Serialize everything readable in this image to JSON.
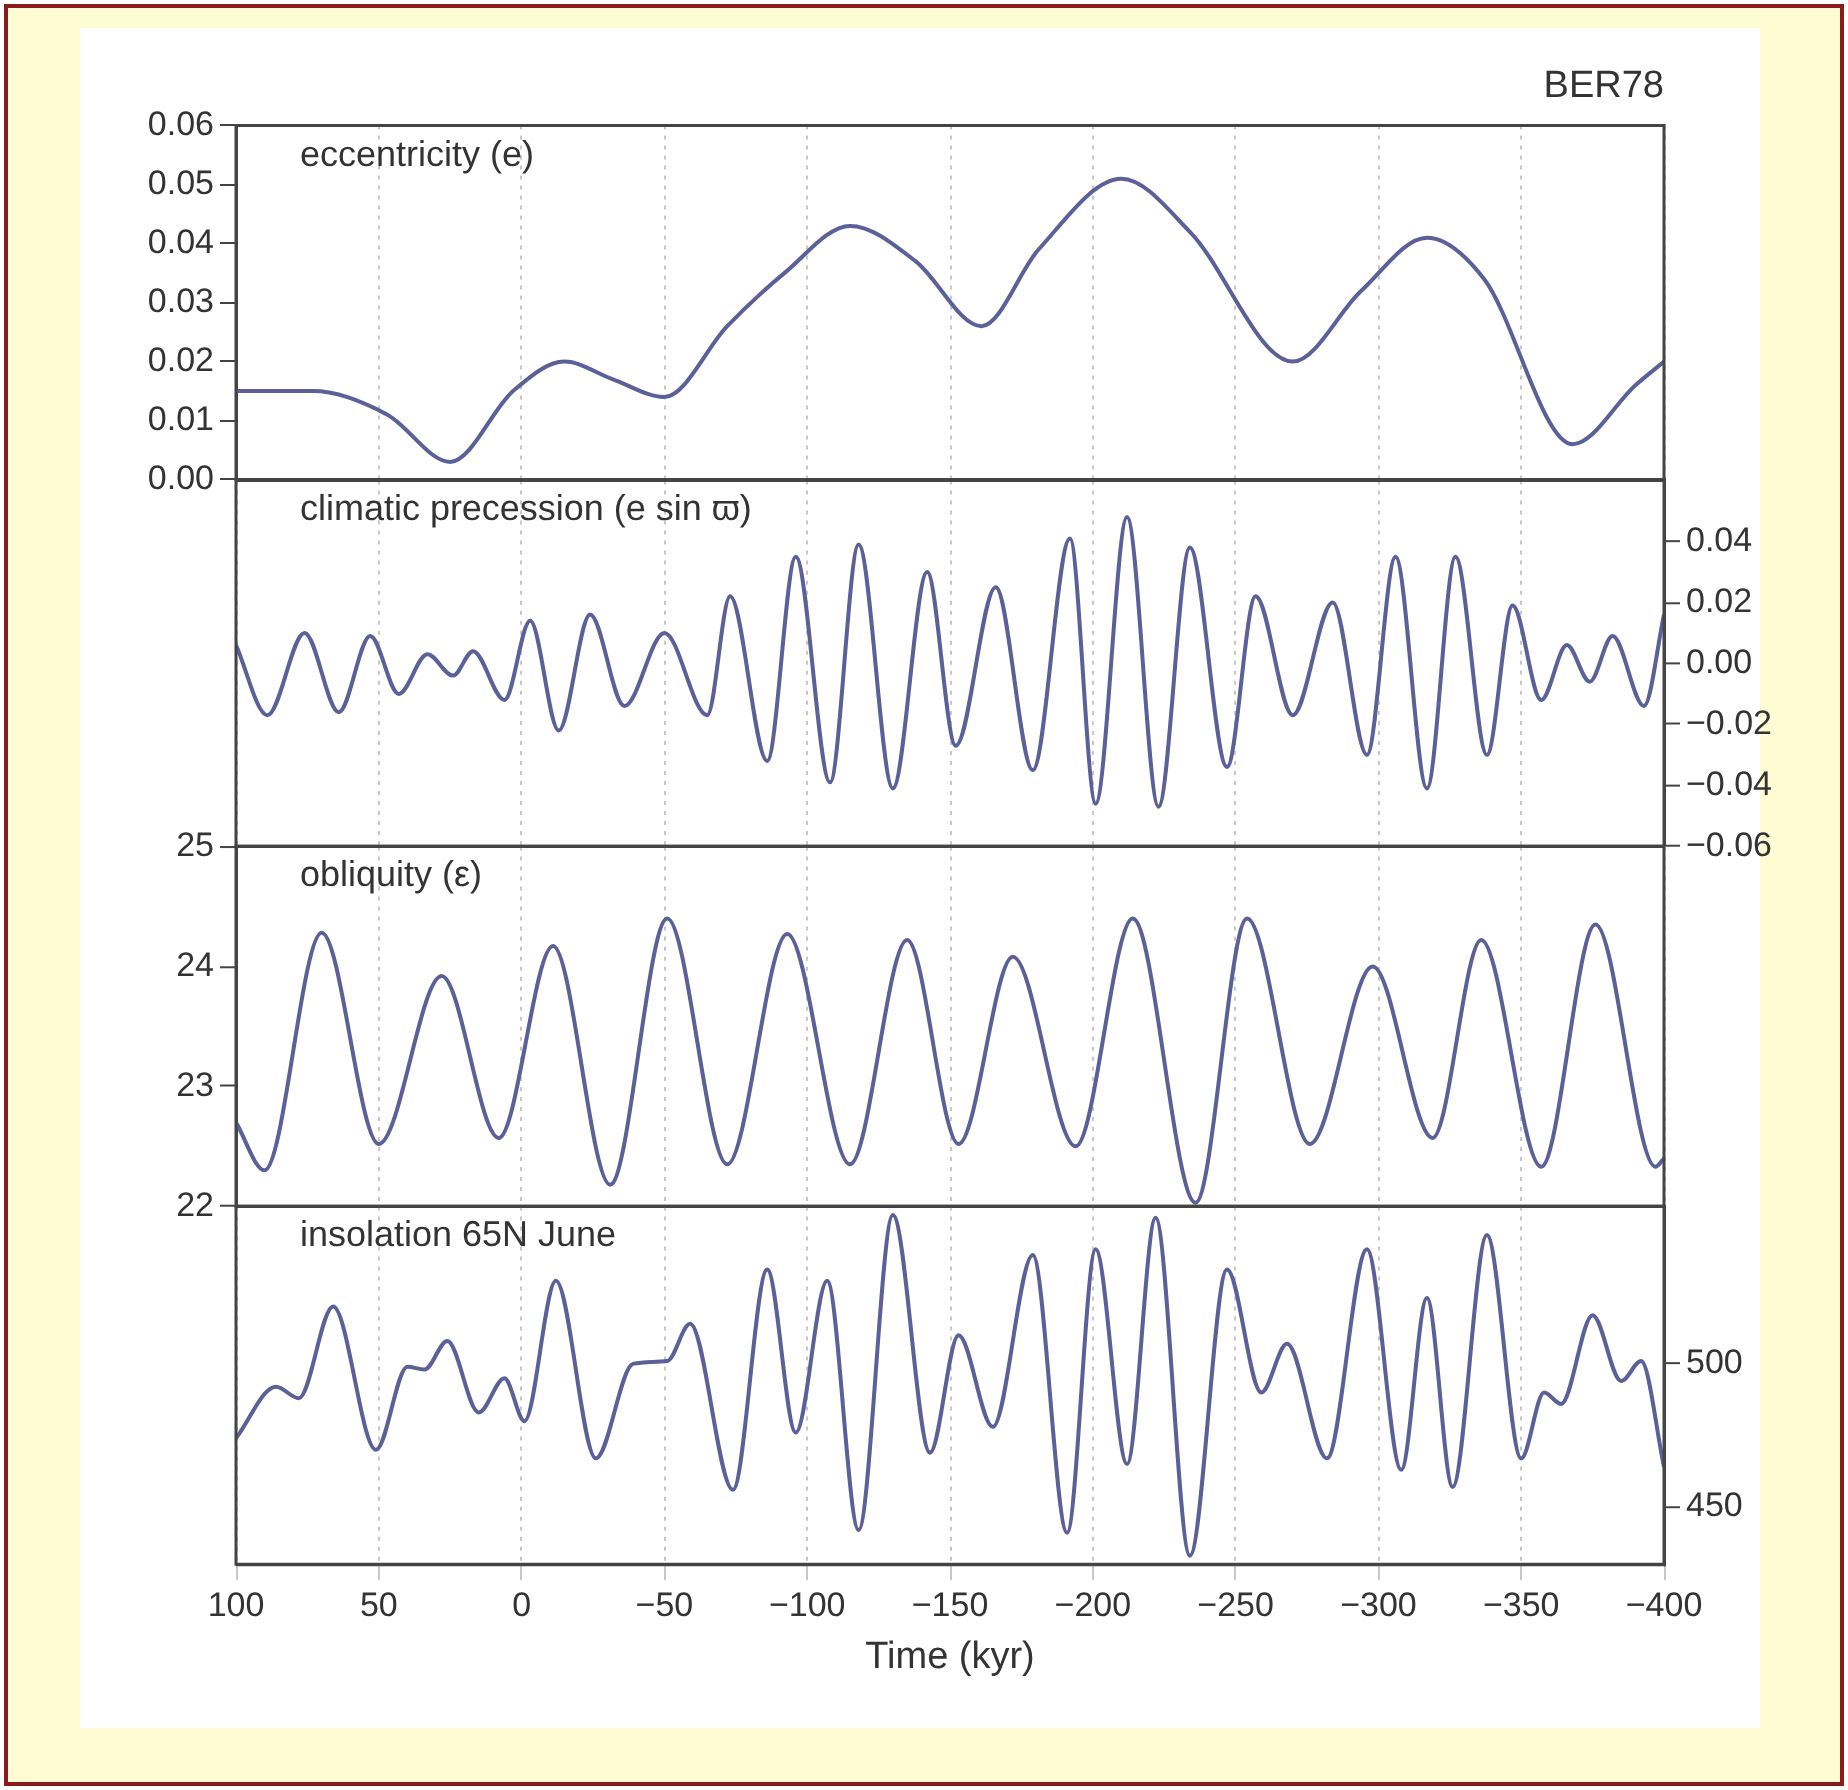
{
  "chart_data": [
    {
      "type": "line",
      "title": "BER78",
      "annotations": [
        "eccentricity (e)"
      ],
      "xlim": [
        100,
        -400
      ],
      "xticks": [
        {
          "value": 100,
          "label": null
        },
        {
          "value": 50,
          "label": null
        },
        {
          "value": 0,
          "label": null
        },
        {
          "value": -50,
          "label": null
        },
        {
          "value": -100,
          "label": null
        },
        {
          "value": -150,
          "label": null
        },
        {
          "value": -200,
          "label": null
        },
        {
          "value": -250,
          "label": null
        },
        {
          "value": -300,
          "label": null
        },
        {
          "value": -350,
          "label": null
        },
        {
          "value": -400,
          "label": null
        }
      ],
      "ylim": [
        0,
        0.06
      ],
      "yticks": [
        {
          "value": 0,
          "label": "0.00"
        },
        {
          "value": 0.01,
          "label": "0.01"
        },
        {
          "value": 0.02,
          "label": "0.02"
        },
        {
          "value": 0.03,
          "label": "0.03"
        },
        {
          "value": 0.04,
          "label": "0.04"
        },
        {
          "value": 0.05,
          "label": "0.05"
        },
        {
          "value": 0.06,
          "label": "0.06"
        }
      ],
      "grid": "x",
      "tick_labels": "y",
      "x": [
        100,
        73,
        47,
        25,
        3,
        -15,
        -32,
        -50,
        -72,
        -92,
        -115,
        -138,
        -161,
        -181,
        -210,
        -234,
        -270,
        -294,
        -317,
        -337,
        -368,
        -390,
        -400
      ],
      "series": [
        {
          "color": "#5b6099",
          "values": [
            0.015,
            0.015,
            0.011,
            0.003,
            0.015,
            0.02,
            0.017,
            0.014,
            0.026,
            0.035,
            0.043,
            0.037,
            0.026,
            0.039,
            0.051,
            0.042,
            0.02,
            0.032,
            0.041,
            0.034,
            0.006,
            0.016,
            0.02
          ]
        }
      ]
    },
    {
      "type": "line",
      "annotations": [
        "climatic precession (e sin ϖ)"
      ],
      "xlim": [
        100,
        -400
      ],
      "xticks": [
        {
          "value": 100,
          "label": null
        },
        {
          "value": 50,
          "label": null
        },
        {
          "value": 0,
          "label": null
        },
        {
          "value": -50,
          "label": null
        },
        {
          "value": -100,
          "label": null
        },
        {
          "value": -150,
          "label": null
        },
        {
          "value": -200,
          "label": null
        },
        {
          "value": -250,
          "label": null
        },
        {
          "value": -300,
          "label": null
        },
        {
          "value": -350,
          "label": null
        },
        {
          "value": -400,
          "label": null
        }
      ],
      "y2lim": [
        -0.06,
        0.06
      ],
      "y2ticks": [
        {
          "value": -0.06,
          "label": "−0.06"
        },
        {
          "value": -0.04,
          "label": "−0.04"
        },
        {
          "value": -0.02,
          "label": "−0.02"
        },
        {
          "value": 0,
          "label": "0.00"
        },
        {
          "value": 0.02,
          "label": "0.02"
        },
        {
          "value": 0.04,
          "label": "0.04"
        }
      ],
      "grid": "x",
      "tick_labels": "y",
      "x": [
        100,
        89,
        76,
        64,
        53,
        43,
        33,
        24,
        17,
        6,
        -3,
        -13,
        -24,
        -36,
        -50,
        -65,
        -73,
        -86,
        -96,
        -108,
        -118,
        -130,
        -142,
        -152,
        -166,
        -179,
        -192,
        -201,
        -212,
        -223,
        -234,
        -247,
        -257,
        -270,
        -284,
        -296,
        -306,
        -317,
        -327,
        -338,
        -347,
        -357,
        -366,
        -374,
        -382,
        -393,
        -400
      ],
      "series": [
        {
          "color": "#5b6099",
          "axis": "y2",
          "values": [
            0.006,
            -0.017,
            0.01,
            -0.016,
            0.009,
            -0.01,
            0.003,
            -0.004,
            0.004,
            -0.012,
            0.014,
            -0.022,
            0.016,
            -0.014,
            0.01,
            -0.017,
            0.022,
            -0.032,
            0.035,
            -0.039,
            0.039,
            -0.041,
            0.03,
            -0.027,
            0.025,
            -0.035,
            0.041,
            -0.046,
            0.048,
            -0.047,
            0.038,
            -0.034,
            0.022,
            -0.017,
            0.02,
            -0.03,
            0.035,
            -0.041,
            0.035,
            -0.03,
            0.019,
            -0.012,
            0.006,
            -0.006,
            0.009,
            -0.014,
            0.016
          ]
        }
      ]
    },
    {
      "type": "line",
      "annotations": [
        "obliquity (ε)"
      ],
      "xlim": [
        100,
        -400
      ],
      "xticks": [
        {
          "value": 100,
          "label": null
        },
        {
          "value": 50,
          "label": null
        },
        {
          "value": 0,
          "label": null
        },
        {
          "value": -50,
          "label": null
        },
        {
          "value": -100,
          "label": null
        },
        {
          "value": -150,
          "label": null
        },
        {
          "value": -200,
          "label": null
        },
        {
          "value": -250,
          "label": null
        },
        {
          "value": -300,
          "label": null
        },
        {
          "value": -350,
          "label": null
        },
        {
          "value": -400,
          "label": null
        }
      ],
      "ylim": [
        22,
        25
      ],
      "yticks": [
        22,
        23,
        24,
        25
      ],
      "grid": "x",
      "tick_labels": "y",
      "x": [
        100,
        90,
        70,
        50,
        28,
        8,
        -11,
        -31,
        -51,
        -72,
        -93,
        -115,
        -135,
        -153,
        -172,
        -194,
        -214,
        -236,
        -254,
        -276,
        -298,
        -319,
        -336,
        -357,
        -376,
        -397,
        -400
      ],
      "series": [
        {
          "color": "#5b6099",
          "values": [
            22.7,
            22.3,
            24.28,
            22.52,
            23.92,
            22.57,
            24.17,
            22.18,
            24.4,
            22.35,
            24.27,
            22.35,
            24.22,
            22.52,
            24.08,
            22.5,
            24.4,
            22.03,
            24.4,
            22.52,
            24.0,
            22.57,
            24.22,
            22.33,
            24.35,
            22.33,
            22.4
          ]
        }
      ]
    },
    {
      "type": "line",
      "annotations": [
        "insolation 65N June"
      ],
      "xlabel": "Time (kyr)",
      "xlim": [
        100,
        -400
      ],
      "xticks": [
        100,
        50,
        0,
        {
          "value": -50,
          "label": "−50"
        },
        {
          "value": -100,
          "label": "−100"
        },
        {
          "value": -150,
          "label": "−150"
        },
        {
          "value": -200,
          "label": "−200"
        },
        {
          "value": -250,
          "label": "−250"
        },
        {
          "value": -300,
          "label": "−300"
        },
        {
          "value": -350,
          "label": "−350"
        },
        {
          "value": -400,
          "label": "−400"
        }
      ],
      "y2lim": [
        430,
        555
      ],
      "y2ticks": [
        450,
        500
      ],
      "grid": "x",
      "x": [
        100,
        86,
        78,
        66,
        51,
        40,
        34,
        26,
        15,
        6,
        -1,
        -12,
        -26,
        -39,
        -51,
        -59,
        -74,
        -86,
        -96,
        -107,
        -118,
        -130,
        -143,
        -153,
        -165,
        -179,
        -191,
        -201,
        -212,
        -222,
        -234,
        -247,
        -259,
        -268,
        -282,
        -296,
        -308,
        -317,
        -326,
        -338,
        -350,
        -358,
        -364,
        -375,
        -385,
        -392,
        -400
      ],
      "series": [
        {
          "color": "#5b6099",
          "axis": "y2",
          "values": [
            474,
            492,
            488,
            520,
            470,
            499,
            498,
            508,
            483,
            495,
            480,
            529,
            467,
            500,
            501,
            514,
            456,
            533,
            476,
            529,
            442,
            552,
            469,
            510,
            478,
            538,
            441,
            540,
            465,
            551,
            433,
            533,
            490,
            507,
            467,
            540,
            463,
            523,
            457,
            545,
            467,
            490,
            486,
            517,
            494,
            501,
            464
          ]
        }
      ]
    }
  ]
}
